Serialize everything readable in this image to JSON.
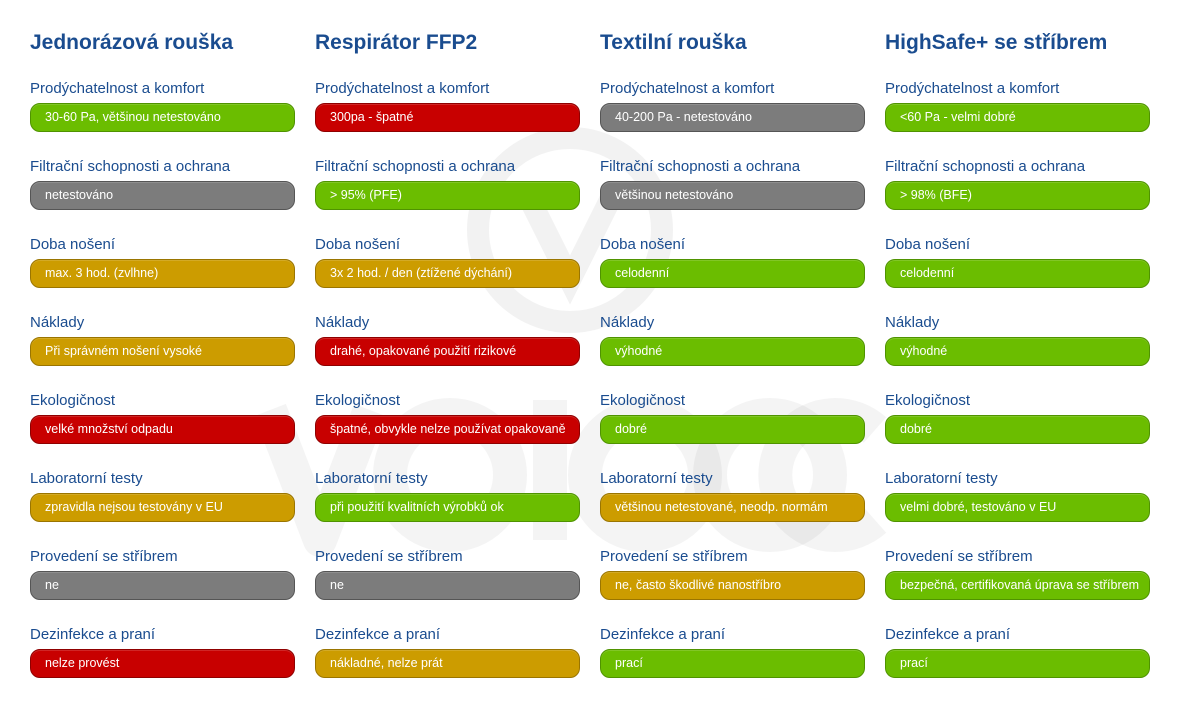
{
  "colors": {
    "title": "#1a4c8f",
    "green": "#6bbd00",
    "red": "#c80000",
    "gray": "#7c7c7c",
    "amber": "#cc9c00"
  },
  "columns": [
    {
      "title": "Jednorázová rouška",
      "rows": [
        {
          "label": "Prodýchatelnost a komfort",
          "value": "30-60 Pa, většinou netestováno",
          "status": "green"
        },
        {
          "label": "Filtrační schopnosti a ochrana",
          "value": "netestováno",
          "status": "gray"
        },
        {
          "label": "Doba nošení",
          "value": "max. 3 hod. (zvlhne)",
          "status": "amber"
        },
        {
          "label": "Náklady",
          "value": "Při správném nošení vysoké",
          "status": "amber"
        },
        {
          "label": "Ekologičnost",
          "value": "velké množství odpadu",
          "status": "red"
        },
        {
          "label": "Laboratorní testy",
          "value": "zpravidla nejsou testovány v EU",
          "status": "amber"
        },
        {
          "label": "Provedení se stříbrem",
          "value": "ne",
          "status": "gray"
        },
        {
          "label": "Dezinfekce a praní",
          "value": "nelze provést",
          "status": "red"
        }
      ]
    },
    {
      "title": "Respirátor FFP2",
      "rows": [
        {
          "label": "Prodýchatelnost a komfort",
          "value": "300pa - špatné",
          "status": "red"
        },
        {
          "label": "Filtrační schopnosti a ochrana",
          "value": "> 95% (PFE)",
          "status": "green"
        },
        {
          "label": "Doba nošení",
          "value": "3x 2 hod. / den (ztížené dýchání)",
          "status": "amber"
        },
        {
          "label": "Náklady",
          "value": "drahé, opakované použití rizikové",
          "status": "red"
        },
        {
          "label": "Ekologičnost",
          "value": "špatné, obvykle nelze používat opakovaně",
          "status": "red"
        },
        {
          "label": "Laboratorní testy",
          "value": "při použití kvalitních výrobků ok",
          "status": "green"
        },
        {
          "label": "Provedení se stříbrem",
          "value": "ne",
          "status": "gray"
        },
        {
          "label": "Dezinfekce a praní",
          "value": "nákladné, nelze prát",
          "status": "amber"
        }
      ]
    },
    {
      "title": "Textilní rouška",
      "rows": [
        {
          "label": "Prodýchatelnost a komfort",
          "value": "40-200 Pa - netestováno",
          "status": "gray"
        },
        {
          "label": "Filtrační schopnosti a ochrana",
          "value": "většinou netestováno",
          "status": "gray"
        },
        {
          "label": "Doba nošení",
          "value": "celodenní",
          "status": "green"
        },
        {
          "label": "Náklady",
          "value": "výhodné",
          "status": "green"
        },
        {
          "label": "Ekologičnost",
          "value": "dobré",
          "status": "green"
        },
        {
          "label": "Laboratorní testy",
          "value": "většinou netestované, neodp. normám",
          "status": "amber"
        },
        {
          "label": "Provedení se stříbrem",
          "value": "ne, často škodlivé nanostříbro",
          "status": "amber"
        },
        {
          "label": "Dezinfekce a praní",
          "value": "prací",
          "status": "green"
        }
      ]
    },
    {
      "title": "HighSafe+ se stříbrem",
      "rows": [
        {
          "label": "Prodýchatelnost a komfort",
          "value": "<60 Pa - velmi dobré",
          "status": "green"
        },
        {
          "label": "Filtrační schopnosti a ochrana",
          "value": "> 98% (BFE)",
          "status": "green"
        },
        {
          "label": "Doba nošení",
          "value": "celodenní",
          "status": "green"
        },
        {
          "label": "Náklady",
          "value": "výhodné",
          "status": "green"
        },
        {
          "label": "Ekologičnost",
          "value": "dobré",
          "status": "green"
        },
        {
          "label": "Laboratorní testy",
          "value": "velmi dobré, testováno v EU",
          "status": "green"
        },
        {
          "label": "Provedení se stříbrem",
          "value": "bezpečná, certifikovaná úprava se stříbrem",
          "status": "green"
        },
        {
          "label": "Dezinfekce a praní",
          "value": "prací",
          "status": "green"
        }
      ]
    }
  ]
}
